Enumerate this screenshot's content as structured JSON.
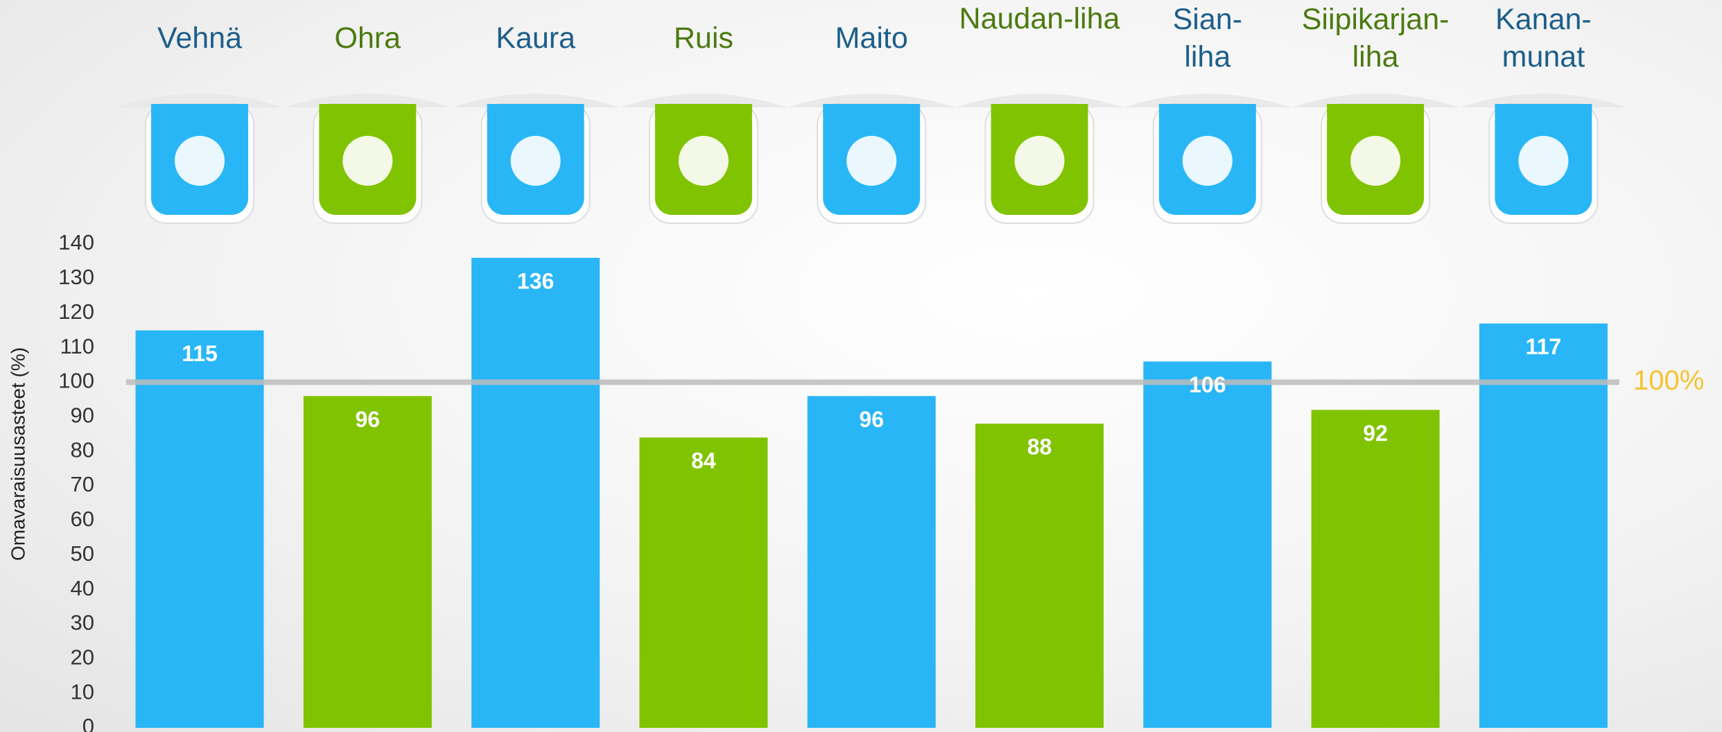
{
  "chart_data": {
    "type": "bar",
    "y_label": "Omavaraisuusasteet (%)",
    "categories": [
      "Vehnä",
      "Ohra",
      "Kaura",
      "Ruis",
      "Maito",
      "Naudan-liha",
      "Sian-liha",
      "Siipikarjan-liha",
      "Kanan-munat"
    ],
    "values": [
      115,
      96,
      136,
      84,
      96,
      88,
      106,
      92,
      117
    ],
    "colors": [
      "#29b6f6",
      "#80c300",
      "#29b6f6",
      "#80c300",
      "#29b6f6",
      "#80c300",
      "#29b6f6",
      "#80c300",
      "#29b6f6"
    ],
    "label_colors": [
      "#1d5e8a",
      "#4b7a10",
      "#1d5e8a",
      "#4b7a10",
      "#1d5e8a",
      "#4b7a10",
      "#1d5e8a",
      "#4b7a10",
      "#1d5e8a"
    ],
    "ylim": [
      0,
      140
    ],
    "yticks": [
      0,
      10,
      20,
      30,
      40,
      50,
      60,
      70,
      80,
      90,
      100,
      110,
      120,
      130,
      140
    ],
    "reference_line": {
      "value": 100,
      "label": "100%",
      "color": "#f5c330"
    }
  }
}
